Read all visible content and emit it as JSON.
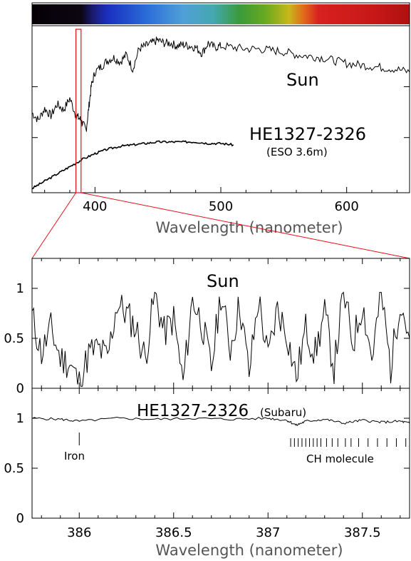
{
  "colors": {
    "zoom_box": "#e0101a",
    "line": "#000000",
    "axis_label": "#555555"
  },
  "chart_data": [
    {
      "type": "line",
      "xlabel": "Wavelength (nanometer)",
      "xlim": [
        350,
        650
      ],
      "x_ticks": [
        "400",
        "500",
        "600"
      ],
      "ylim": [
        0,
        1.1
      ],
      "spectrum_bar": "visible color spectrum (violet to red)",
      "zoom_region_nm": [
        386.0,
        387.8
      ],
      "annotations": {
        "sun": "Sun",
        "star": "HE1327-2326",
        "star_sub": "(ESO 3.6m)"
      },
      "series": [
        {
          "name": "Sun",
          "x": [
            350,
            355,
            360,
            365,
            370,
            375,
            380,
            385,
            388,
            390,
            393,
            395,
            397,
            400,
            405,
            410,
            415,
            420,
            425,
            430,
            435,
            440,
            445,
            450,
            455,
            460,
            465,
            470,
            475,
            480,
            485,
            490,
            495,
            500,
            510,
            520,
            530,
            540,
            550,
            560,
            570,
            580,
            590,
            600,
            610,
            620,
            630,
            640,
            650
          ],
          "y": [
            0.52,
            0.47,
            0.55,
            0.5,
            0.58,
            0.54,
            0.62,
            0.5,
            0.48,
            0.45,
            0.4,
            0.55,
            0.7,
            0.8,
            0.84,
            0.88,
            0.9,
            0.87,
            0.92,
            0.82,
            0.96,
            0.98,
            1.0,
            1.02,
            1.0,
            1.0,
            0.98,
            0.99,
            0.98,
            0.97,
            0.93,
            1.0,
            0.97,
            0.98,
            0.97,
            0.96,
            0.96,
            0.95,
            0.94,
            0.92,
            0.91,
            0.9,
            0.88,
            0.86,
            0.85,
            0.84,
            0.83,
            0.82,
            0.8
          ]
        },
        {
          "name": "HE1327-2326",
          "x": [
            350,
            360,
            370,
            380,
            390,
            400,
            410,
            420,
            430,
            440,
            450,
            460,
            470,
            480,
            490,
            500,
            510
          ],
          "y": [
            0.0,
            0.05,
            0.1,
            0.15,
            0.2,
            0.24,
            0.27,
            0.29,
            0.3,
            0.31,
            0.32,
            0.32,
            0.32,
            0.32,
            0.31,
            0.31,
            0.3
          ]
        }
      ]
    },
    {
      "type": "line",
      "xlim": [
        385.75,
        387.75
      ],
      "ylim": [
        0,
        1.3
      ],
      "y_ticks": [
        "0",
        "0.5",
        "1"
      ],
      "annotations": {
        "title": "Sun"
      },
      "series": [
        {
          "name": "Sun",
          "x": [
            385.75,
            385.8,
            385.85,
            385.9,
            385.95,
            386.0,
            386.05,
            386.1,
            386.15,
            386.2,
            386.25,
            386.3,
            386.35,
            386.4,
            386.45,
            386.5,
            386.55,
            386.6,
            386.65,
            386.7,
            386.75,
            386.8,
            386.85,
            386.9,
            386.95,
            387.0,
            387.05,
            387.1,
            387.15,
            387.2,
            387.25,
            387.3,
            387.35,
            387.4,
            387.45,
            387.5,
            387.55,
            387.6,
            387.65,
            387.7,
            387.75
          ],
          "y": [
            0.72,
            0.35,
            0.6,
            0.3,
            0.25,
            0.05,
            0.35,
            0.4,
            0.3,
            0.85,
            0.75,
            0.6,
            0.3,
            0.95,
            0.55,
            0.7,
            0.05,
            0.9,
            0.65,
            0.2,
            0.95,
            0.4,
            0.85,
            0.15,
            0.9,
            0.3,
            0.8,
            0.55,
            0.1,
            0.6,
            0.35,
            0.75,
            0.2,
            0.95,
            0.45,
            0.85,
            0.3,
            0.95,
            0.2,
            0.9,
            0.5
          ]
        }
      ]
    },
    {
      "type": "line",
      "xlabel": "Wavelength (nanometer)",
      "xlim": [
        385.75,
        387.75
      ],
      "x_ticks": [
        "386",
        "386.5",
        "387",
        "387.5"
      ],
      "ylim": [
        0,
        1.3
      ],
      "y_ticks": [
        "0",
        "0.5",
        "1"
      ],
      "annotations": {
        "title": "HE1327-2326",
        "title_sub": "(Subaru)",
        "iron": "Iron",
        "ch": "CH molecule"
      },
      "iron_line_nm": 386.0,
      "ch_lines_nm": [
        387.12,
        387.14,
        387.16,
        387.18,
        387.2,
        387.22,
        387.24,
        387.26,
        387.28,
        387.31,
        387.34,
        387.37,
        387.41,
        387.44,
        387.48,
        387.53,
        387.58,
        387.63,
        387.68,
        387.73
      ],
      "series": [
        {
          "name": "HE1327-2326",
          "x": [
            385.75,
            385.9,
            386.0,
            386.2,
            386.4,
            386.6,
            386.8,
            387.0,
            387.1,
            387.15,
            387.2,
            387.3,
            387.4,
            387.5,
            387.6,
            387.7,
            387.75
          ],
          "y": [
            1.0,
            0.99,
            0.97,
            1.0,
            0.99,
            1.0,
            0.99,
            1.0,
            0.98,
            0.93,
            0.97,
            0.99,
            0.95,
            0.98,
            0.96,
            0.97,
            0.95
          ]
        }
      ]
    }
  ]
}
